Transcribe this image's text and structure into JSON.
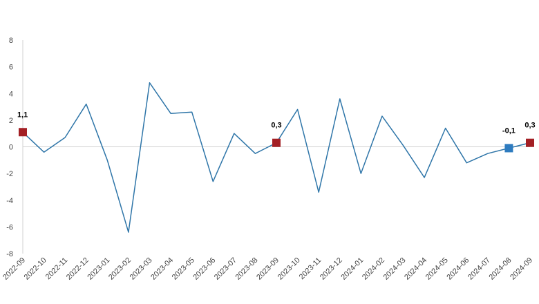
{
  "chart_data": {
    "type": "line",
    "title": "",
    "xlabel": "",
    "ylabel": "",
    "ylim": [
      -8,
      8
    ],
    "yticks": [
      8,
      6,
      4,
      2,
      0,
      -2,
      -4,
      -6,
      -8
    ],
    "grid": false,
    "categories": [
      "2022-09",
      "2022-10",
      "2022-11",
      "2022-12",
      "2023-01",
      "2023-02",
      "2023-03",
      "2023-04",
      "2023-05",
      "2023-06",
      "2023-07",
      "2023-08",
      "2023-09",
      "2023-10",
      "2023-11",
      "2023-12",
      "2024-01",
      "2024-02",
      "2024-03",
      "2024-04",
      "2024-05",
      "2024-06",
      "2024-07",
      "2024-08",
      "2024-09"
    ],
    "series": [
      {
        "values": [
          1.1,
          -0.4,
          0.7,
          3.2,
          -1.0,
          -6.4,
          4.8,
          2.5,
          2.6,
          -2.6,
          1.0,
          -0.5,
          0.3,
          2.8,
          -3.4,
          3.6,
          -2.0,
          2.3,
          0.1,
          -2.3,
          1.4,
          -1.2,
          -0.5,
          -0.1,
          0.3
        ]
      }
    ],
    "line_color": "#2e75a8",
    "highlights": [
      {
        "index": 0,
        "label": "1,1",
        "color": "#a31f24"
      },
      {
        "index": 12,
        "label": "0,3",
        "color": "#a31f24"
      },
      {
        "index": 23,
        "label": "-0,1",
        "color": "#2e7bbf"
      },
      {
        "index": 24,
        "label": "0,3",
        "color": "#a31f24"
      }
    ]
  }
}
